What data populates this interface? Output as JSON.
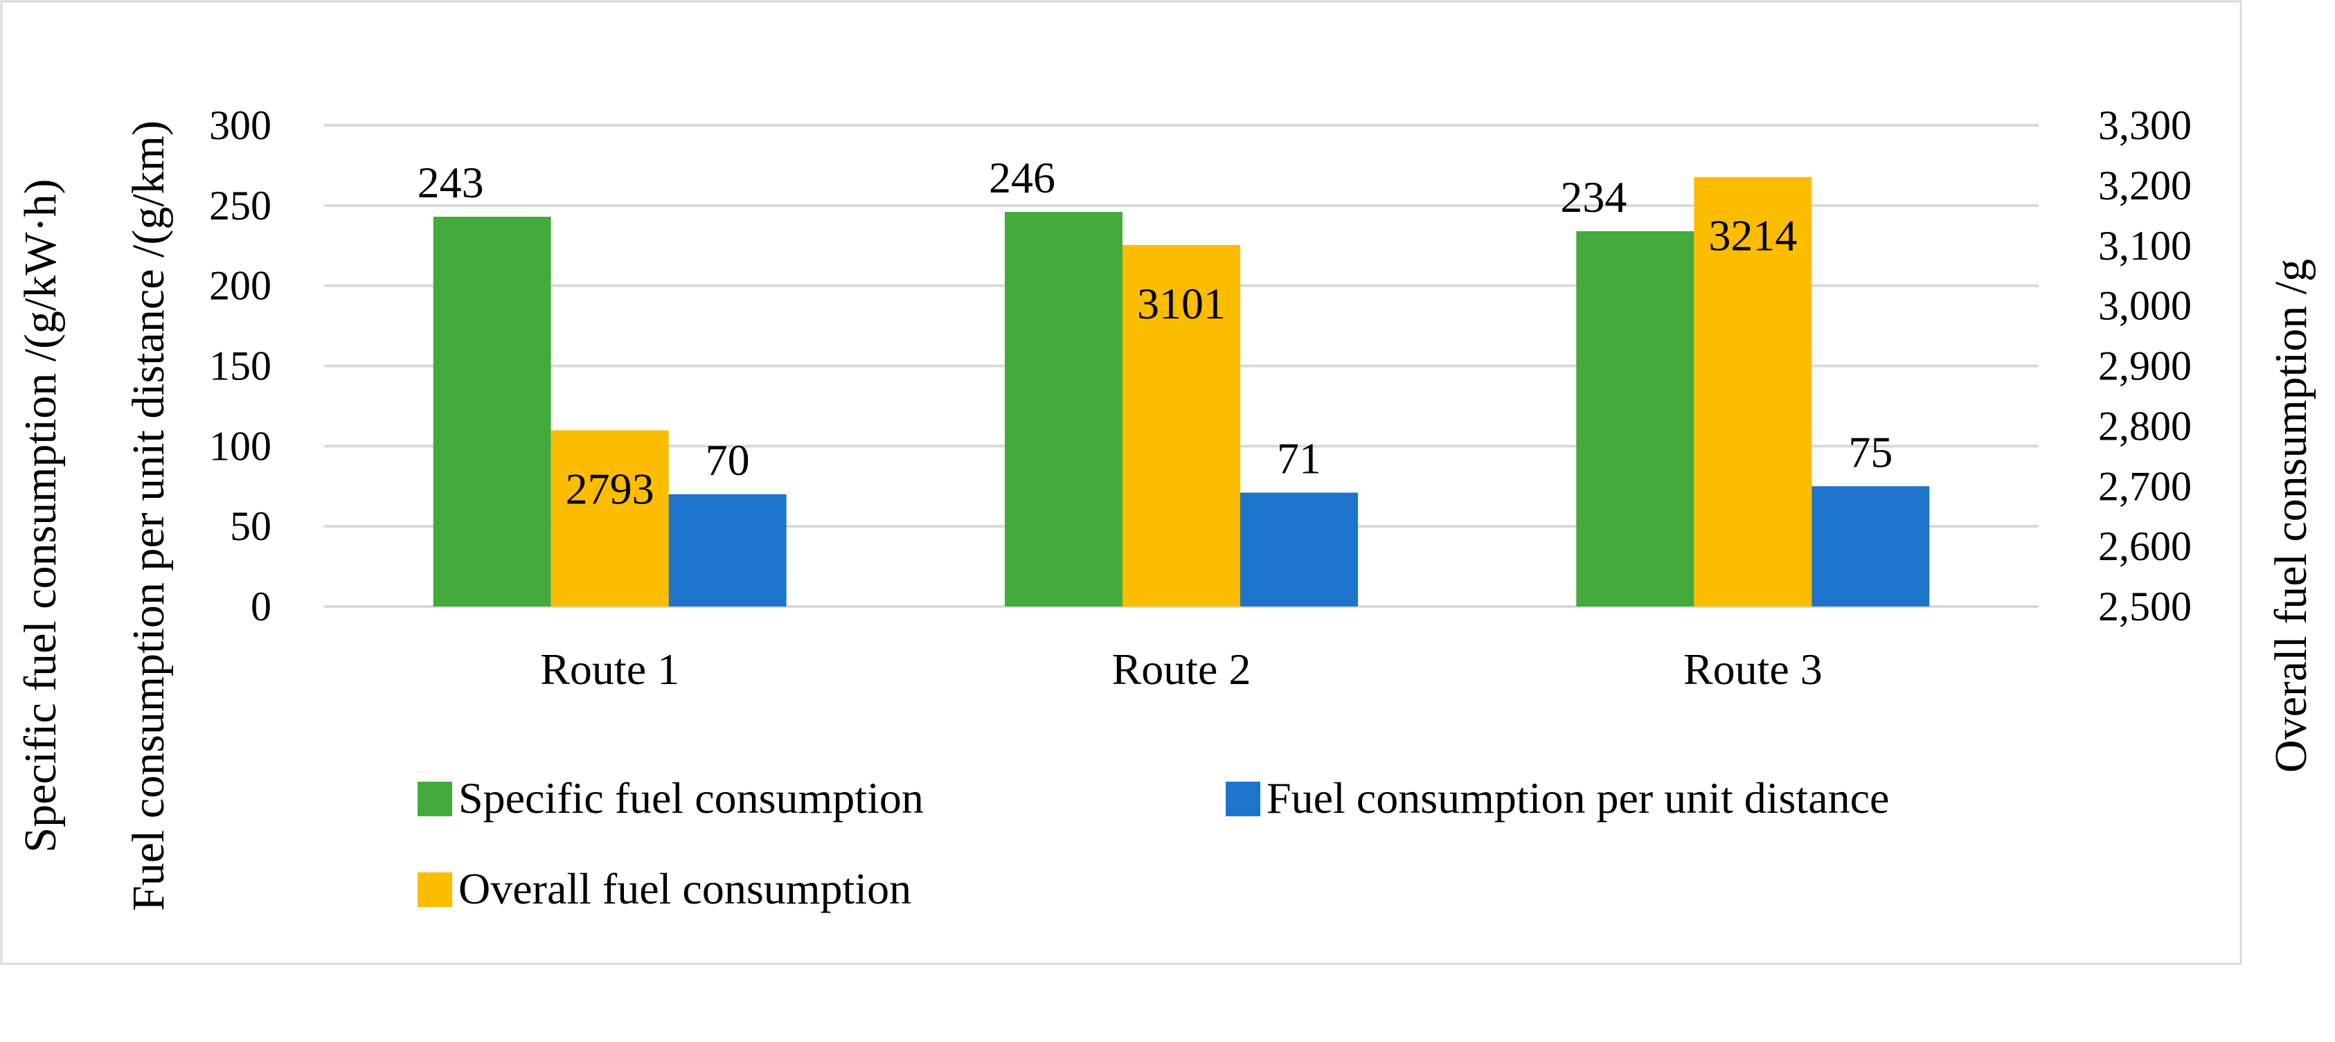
{
  "chart_data": {
    "type": "bar",
    "categories": [
      "Route 1",
      "Route 2",
      "Route 3"
    ],
    "series": [
      {
        "name": "Specific fuel consumption",
        "axis": "left",
        "color": "#43ab3c",
        "values": [
          243,
          246,
          234
        ],
        "labels": [
          "243",
          "246",
          "234"
        ]
      },
      {
        "name": "Overall fuel consumption",
        "axis": "right",
        "color": "#fcbd00",
        "values": [
          2793,
          3101,
          3214
        ],
        "labels": [
          "2793",
          "3101",
          "3214"
        ]
      },
      {
        "name": "Fuel consumption per unit distance",
        "axis": "left",
        "color": "#1c75ca",
        "values": [
          70,
          71,
          75
        ],
        "labels": [
          "70",
          "71",
          "75"
        ]
      }
    ],
    "left_axis": {
      "title_line1": "Specific fuel consumption /(g/kW·h)",
      "title_line2": "Fuel consumption per unit distance /(g/km)",
      "range": [
        0,
        300
      ],
      "ticks": [
        "0",
        "50",
        "100",
        "150",
        "200",
        "250",
        "300"
      ]
    },
    "right_axis": {
      "title": "Overall fuel consumption /g",
      "range": [
        2500,
        3300
      ],
      "ticks": [
        "2,500",
        "2,600",
        "2,700",
        "2,800",
        "2,900",
        "3,000",
        "3,100",
        "3,200",
        "3,300"
      ]
    },
    "legend": {
      "position": "bottom",
      "items": [
        "Specific fuel consumption",
        "Fuel consumption per unit distance",
        "Overall fuel consumption"
      ]
    },
    "grid": true
  }
}
